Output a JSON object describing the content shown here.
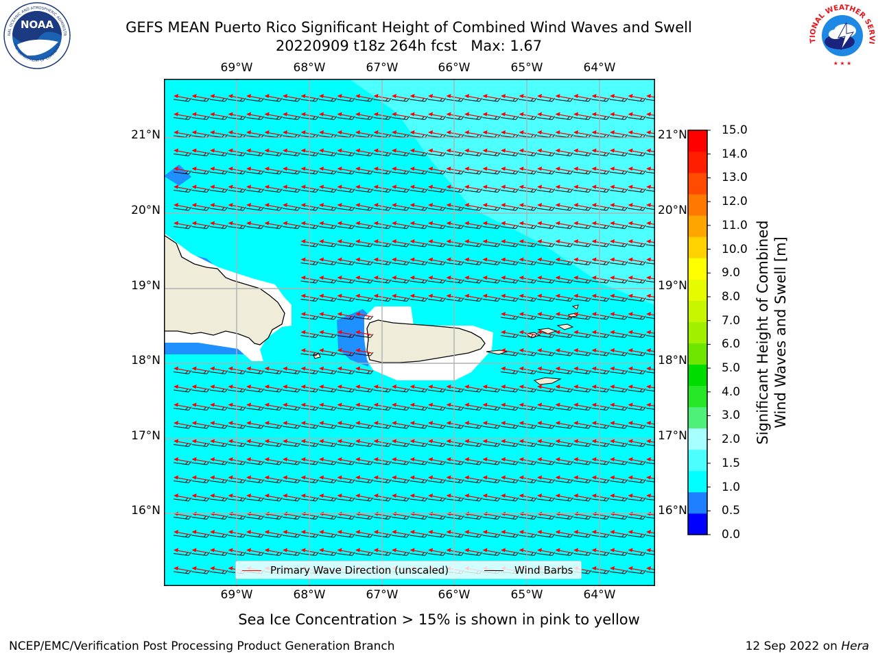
{
  "title": {
    "line1": "GEFS MEAN Puerto Rico Significant Height of Combined Wind Waves and Swell",
    "line2": "20220909 t18z 264h fcst   Max: 1.67"
  },
  "logos": {
    "noaa_text": "NOAA",
    "noaa_ring_text": "NATIONAL OCEANIC AND ATMOSPHERIC ADMINISTRATION",
    "noaa_bottom_text": "U.S. DEPARTMENT OF COMMERCE",
    "nws_ring_text": "NATIONAL WEATHER SERVICE"
  },
  "map": {
    "lon_labels": [
      "69°W",
      "68°W",
      "67°W",
      "66°W",
      "65°W",
      "64°W"
    ],
    "lat_labels": [
      "21°N",
      "20°N",
      "19°N",
      "18°N",
      "17°N",
      "16°N"
    ],
    "ocean_color": "#00ffff",
    "low_wave_color": "#1e90ff",
    "higher_wave_color": "#4dffff",
    "land_color": "#efedda",
    "wave_arrow_color": "#ff0000",
    "wind_barb_color": "#000000"
  },
  "legend": {
    "wave_label": "Primary Wave Direction (unscaled)",
    "barb_label": "Wind Barbs"
  },
  "colorbar": {
    "title_line1": "Significant Height of Combined",
    "title_line2": "Wind Waves and Swell [m]",
    "ticks": [
      "15.0",
      "14.0",
      "13.0",
      "12.0",
      "11.0",
      "10.0",
      "9.0",
      "8.0",
      "7.0",
      "6.0",
      "5.0",
      "4.0",
      "3.0",
      "2.0",
      "1.5",
      "1.0",
      "0.5",
      "0.0"
    ],
    "colors": [
      "#0000ff",
      "#1e7fff",
      "#00ffff",
      "#4cffff",
      "#a8ffff",
      "#4ef07a",
      "#28e628",
      "#00dc00",
      "#6ee600",
      "#a0f000",
      "#c8f500",
      "#e6fa00",
      "#ffff00",
      "#ffd200",
      "#ffa500",
      "#ff7800",
      "#ff4b00",
      "#ff1e00",
      "#ff0000"
    ]
  },
  "subnote": "Sea Ice Concentration > 15% is shown in pink to yellow",
  "footer": {
    "left": "NCEP/EMC/Verification Post Processing Product Generation Branch",
    "right_prefix": "12 Sep 2022 on",
    "right_host": "Hera"
  }
}
